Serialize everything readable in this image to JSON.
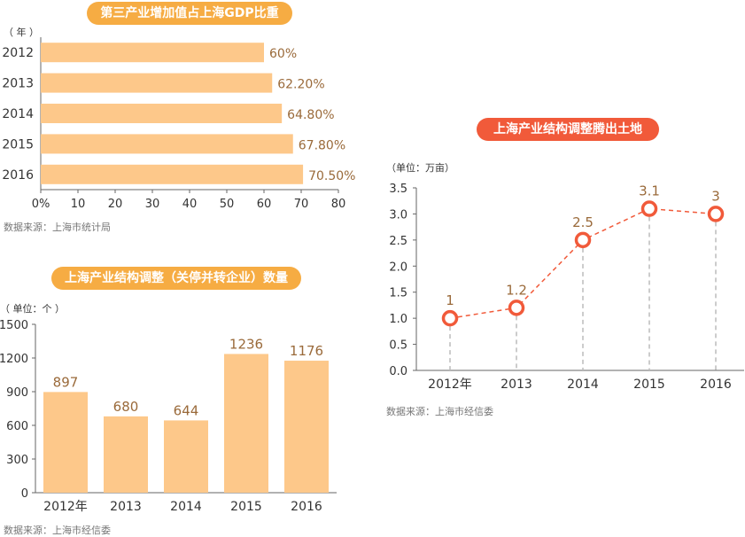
{
  "colors": {
    "bar": "#fdc88a",
    "accent_orange": "#f6ac43",
    "accent_red": "#f15a3a",
    "value_text": "#9a6a3a",
    "axis": "#666666"
  },
  "chart_data": [
    {
      "id": "gdp_share",
      "type": "bar",
      "orientation": "horizontal",
      "title": "第三产业增加值占上海GDP比重",
      "unit_label": "（ 年 ）",
      "categories": [
        "2012",
        "2013",
        "2014",
        "2015",
        "2016"
      ],
      "values": [
        60,
        62.2,
        64.8,
        67.8,
        70.5
      ],
      "value_labels": [
        "60%",
        "62.20%",
        "64.80%",
        "67.80%",
        "70.50%"
      ],
      "x_ticks": [
        "0%",
        "10",
        "20",
        "30",
        "40",
        "50",
        "60",
        "70",
        "80"
      ],
      "xlim": [
        0,
        80
      ],
      "grid": false,
      "source": "数据来源：上海市统计局"
    },
    {
      "id": "enterprise_count",
      "type": "bar",
      "title": "上海产业结构调整（关停并转企业）数量",
      "unit_label": "（ 单位：个 ）",
      "categories": [
        "2012年",
        "2013",
        "2014",
        "2015",
        "2016"
      ],
      "values": [
        897,
        680,
        644,
        1236,
        1176
      ],
      "y_ticks": [
        "0",
        "300",
        "600",
        "900",
        "1200",
        "1500"
      ],
      "ylim": [
        0,
        1500
      ],
      "grid": false,
      "source": "数据来源：上海市经信委"
    },
    {
      "id": "land_released",
      "type": "line",
      "title": "上海产业结构调整腾出土地",
      "unit_label": "（单位：万亩）",
      "categories": [
        "2012年",
        "2013",
        "2014",
        "2015",
        "2016"
      ],
      "values": [
        1,
        1.2,
        2.5,
        3.1,
        3
      ],
      "value_labels": [
        "1",
        "1.2",
        "2.5",
        "3.1",
        "3"
      ],
      "y_ticks": [
        "0.0",
        "0.5",
        "1.0",
        "1.5",
        "2.0",
        "2.5",
        "3.0",
        "3.5"
      ],
      "ylim": [
        0,
        3.5
      ],
      "grid": false,
      "source": "数据来源：上海市经信委"
    }
  ]
}
